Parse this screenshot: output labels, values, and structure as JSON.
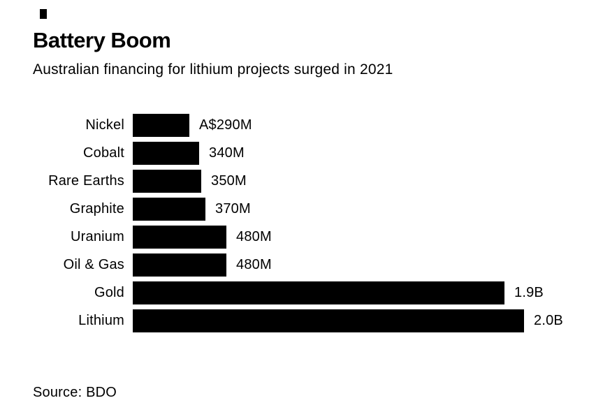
{
  "header": {
    "title": "Battery Boom",
    "subtitle": "Australian financing for lithium projects surged in 2021"
  },
  "footer": {
    "source": "Source: BDO"
  },
  "colors": {
    "bar": "#000000",
    "text": "#000000",
    "background": "#ffffff"
  },
  "chart_data": {
    "type": "bar",
    "orientation": "horizontal",
    "title": "Battery Boom",
    "subtitle": "Australian financing for lithium projects surged in 2021",
    "source": "Source: BDO",
    "categories": [
      "Nickel",
      "Cobalt",
      "Rare Earths",
      "Graphite",
      "Uranium",
      "Oil & Gas",
      "Gold",
      "Lithium"
    ],
    "values": [
      290,
      340,
      350,
      370,
      480,
      480,
      1900,
      2000
    ],
    "value_labels": [
      "A$290M",
      "340M",
      "350M",
      "370M",
      "480M",
      "480M",
      "1.9B",
      "2.0B"
    ],
    "xlim": [
      0,
      2000
    ],
    "grid": false,
    "legend": false,
    "bar_color": "#000000"
  }
}
